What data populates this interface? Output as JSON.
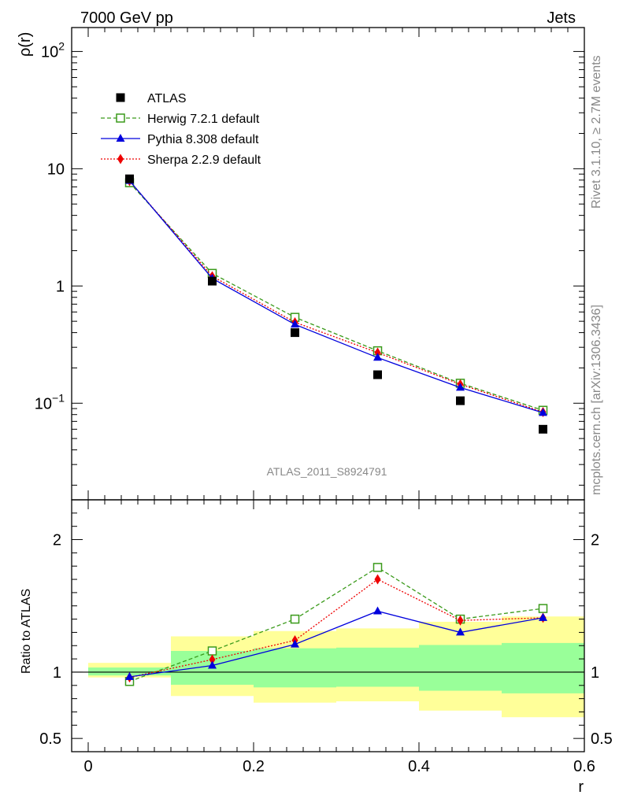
{
  "header": {
    "left_title": "7000 GeV pp",
    "right_title": "Jets"
  },
  "side_labels": {
    "rivet": "Rivet 3.1.10, ≥ 2.7M events",
    "mcplots": "mcplots.cern.ch [arXiv:1306.3436]"
  },
  "chart_data": {
    "type": "scatter",
    "x_label": "r",
    "analysis_label": "ATLAS_2011_S8924791",
    "top_panel": {
      "y_label": "ρ(r)",
      "y_scale": "log",
      "xlim": [
        -0.02,
        0.6
      ],
      "ylim": [
        0.015,
        160
      ],
      "y_ticks": [
        {
          "value": 100,
          "base": "10",
          "exp": "2"
        },
        {
          "value": 10,
          "base": "10",
          "exp": ""
        },
        {
          "value": 1,
          "base": "1",
          "exp": ""
        },
        {
          "value": 0.1,
          "base": "10",
          "exp": "−1"
        }
      ],
      "x": [
        0.05,
        0.15,
        0.25,
        0.35,
        0.45,
        0.55
      ],
      "series": [
        {
          "name": "ATLAS",
          "color": "#000000",
          "marker": "square-filled",
          "line": "none",
          "values": [
            8.2,
            1.1,
            0.4,
            0.175,
            0.105,
            0.06
          ]
        },
        {
          "name": "Herwig 7.2.1 default",
          "color": "#3a9a1a",
          "marker": "square-open",
          "line": "dashed",
          "values": [
            7.6,
            1.28,
            0.54,
            0.28,
            0.148,
            0.087
          ]
        },
        {
          "name": "Pythia 8.308 default",
          "color": "#0000dd",
          "marker": "triangle",
          "line": "solid",
          "values": [
            7.9,
            1.16,
            0.47,
            0.245,
            0.136,
            0.083
          ]
        },
        {
          "name": "Sherpa 2.2.9 default",
          "color": "#ee0000",
          "marker": "diamond",
          "line": "dotted",
          "values": [
            7.85,
            1.21,
            0.49,
            0.27,
            0.145,
            0.084
          ]
        }
      ]
    },
    "ratio_panel": {
      "y_label": "Ratio to ATLAS",
      "ylim": [
        0.4,
        2.3
      ],
      "y_ticks": [
        0.5,
        1,
        2
      ],
      "y_tick_labels": [
        "0.5",
        "1",
        "2"
      ],
      "x_ticks": [
        0,
        0.2,
        0.4,
        0.6
      ],
      "x_tick_labels": [
        "0",
        "0.2",
        "0.4",
        "0.6"
      ],
      "bins": [
        {
          "lo": 0.0,
          "hi": 0.1,
          "stat_lo": 0.975,
          "stat_hi": 1.035,
          "tot_lo": 0.96,
          "tot_hi": 1.07
        },
        {
          "lo": 0.1,
          "hi": 0.2,
          "stat_lo": 0.905,
          "stat_hi": 1.16,
          "tot_lo": 0.82,
          "tot_hi": 1.27
        },
        {
          "lo": 0.2,
          "hi": 0.3,
          "stat_lo": 0.885,
          "stat_hi": 1.18,
          "tot_lo": 0.77,
          "tot_hi": 1.31
        },
        {
          "lo": 0.3,
          "hi": 0.4,
          "stat_lo": 0.89,
          "stat_hi": 1.185,
          "tot_lo": 0.78,
          "tot_hi": 1.33
        },
        {
          "lo": 0.4,
          "hi": 0.5,
          "stat_lo": 0.86,
          "stat_hi": 1.205,
          "tot_lo": 0.71,
          "tot_hi": 1.38
        },
        {
          "lo": 0.5,
          "hi": 0.6,
          "stat_lo": 0.84,
          "stat_hi": 1.22,
          "tot_lo": 0.66,
          "tot_hi": 1.42
        }
      ],
      "series": [
        {
          "name": "Herwig 7.2.1 default",
          "values": [
            0.93,
            1.16,
            1.4,
            1.79,
            1.4,
            1.48
          ]
        },
        {
          "name": "Pythia 8.308 default",
          "values": [
            0.965,
            1.05,
            1.21,
            1.46,
            1.3,
            1.41
          ]
        },
        {
          "name": "Sherpa 2.2.9 default",
          "values": [
            0.96,
            1.095,
            1.24,
            1.7,
            1.39,
            1.41
          ]
        }
      ]
    }
  }
}
